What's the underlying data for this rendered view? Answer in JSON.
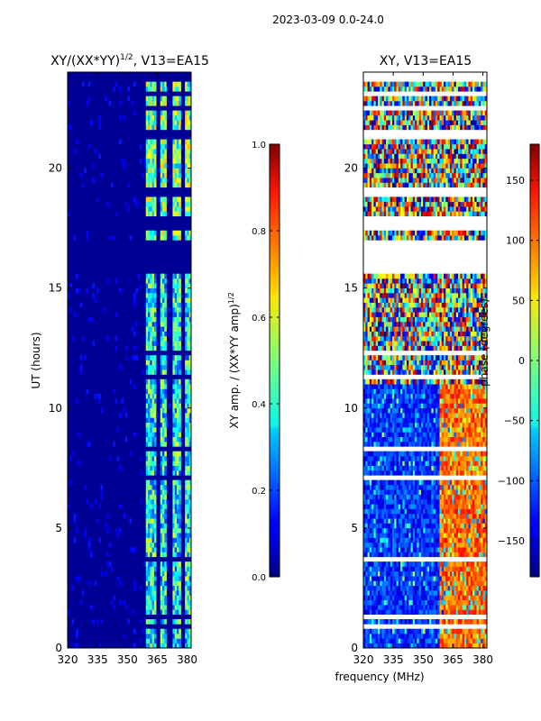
{
  "suptitle": "2023-03-09 0.0-24.0",
  "xlabel_shared": "frequency (MHz)",
  "chart_data": [
    {
      "type": "heatmap",
      "title": "XY/(XX*YY)",
      "title_sup": "1/2",
      "title_suffix": ", V13=EA15",
      "ylabel": "UT (hours)",
      "xlim": [
        320,
        382
      ],
      "ylim": [
        0,
        24
      ],
      "xticks": [
        320,
        335,
        350,
        365,
        380
      ],
      "yticks": [
        0,
        5,
        10,
        15,
        20
      ],
      "colorbar": {
        "label": "XY amp. / (XX*YY amp)",
        "label_sup": "1/2",
        "range": [
          0.0,
          1.0
        ],
        "ticks": [
          "0.0",
          "0.2",
          "0.4",
          "0.6",
          "0.8",
          "1.0"
        ],
        "tick_values": [
          0.0,
          0.2,
          0.4,
          0.6,
          0.8,
          1.0
        ]
      },
      "bright_bands_mhz": [
        [
          359,
          364
        ],
        [
          366,
          370
        ],
        [
          373,
          377
        ],
        [
          379,
          382
        ]
      ],
      "background_value": 0.02
    },
    {
      "type": "heatmap",
      "title": "XY, V13=EA15",
      "xlim": [
        320,
        382
      ],
      "ylim": [
        0,
        24
      ],
      "xticks": [
        320,
        335,
        350,
        365,
        380
      ],
      "yticks": [
        0,
        5,
        10,
        15,
        20
      ],
      "colorbar": {
        "label": "phase (degrees)",
        "range": [
          -180,
          180
        ],
        "ticks": [
          "150",
          "100",
          "50",
          "0",
          "−50",
          "−100",
          "−150"
        ],
        "tick_values": [
          150,
          100,
          50,
          0,
          -50,
          -100,
          -150
        ]
      }
    }
  ],
  "flagged_gaps_hours": [
    [
      23.7,
      24.0
    ],
    [
      23.05,
      23.25
    ],
    [
      22.45,
      22.6
    ],
    [
      21.95,
      22.05
    ],
    [
      21.5,
      21.6
    ],
    [
      21.25,
      21.35
    ],
    [
      20.2,
      20.3
    ],
    [
      19.45,
      19.5
    ],
    [
      19.05,
      19.15
    ],
    [
      18.75,
      18.95
    ],
    [
      17.5,
      18.0
    ],
    [
      15.6,
      17.0
    ],
    [
      14.8,
      14.85
    ],
    [
      14.55,
      14.65
    ],
    [
      12.55,
      12.65
    ],
    [
      12.3,
      12.4
    ],
    [
      11.3,
      11.4
    ],
    [
      9.6,
      9.7
    ],
    [
      8.75,
      8.85
    ],
    [
      8.3,
      8.45
    ],
    [
      7.35,
      7.5
    ],
    [
      7.1,
      7.2
    ],
    [
      6.0,
      6.1
    ],
    [
      4.6,
      4.65
    ],
    [
      3.6,
      3.75
    ],
    [
      2.55,
      2.65
    ],
    [
      1.55,
      1.7
    ],
    [
      1.3,
      1.4
    ],
    [
      0.85,
      0.95
    ],
    [
      0.4,
      0.5
    ]
  ]
}
